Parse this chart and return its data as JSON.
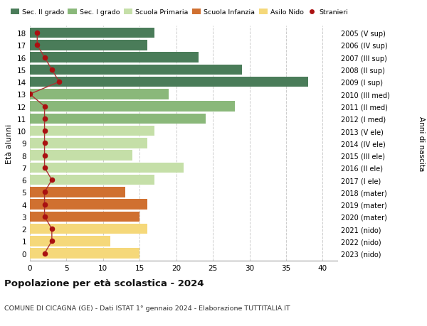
{
  "ages": [
    0,
    1,
    2,
    3,
    4,
    5,
    6,
    7,
    8,
    9,
    10,
    11,
    12,
    13,
    14,
    15,
    16,
    17,
    18
  ],
  "right_labels": [
    "2023 (nido)",
    "2022 (nido)",
    "2021 (nido)",
    "2020 (mater)",
    "2019 (mater)",
    "2018 (mater)",
    "2017 (I ele)",
    "2016 (II ele)",
    "2015 (III ele)",
    "2014 (IV ele)",
    "2013 (V ele)",
    "2012 (I med)",
    "2011 (II med)",
    "2010 (III med)",
    "2009 (I sup)",
    "2008 (II sup)",
    "2007 (III sup)",
    "2006 (IV sup)",
    "2005 (V sup)"
  ],
  "bar_values": [
    15,
    11,
    16,
    15,
    16,
    13,
    17,
    21,
    14,
    16,
    17,
    24,
    28,
    19,
    38,
    29,
    23,
    16,
    17
  ],
  "stranieri": [
    2,
    3,
    3,
    2,
    2,
    2,
    3,
    2,
    2,
    2,
    2,
    2,
    2,
    0,
    4,
    3,
    2,
    1,
    1
  ],
  "categories": {
    "Sec. II grado": {
      "ages": [
        14,
        15,
        16,
        17,
        18
      ],
      "color": "#4a7c59"
    },
    "Sec. I grado": {
      "ages": [
        11,
        12,
        13
      ],
      "color": "#8ab87a"
    },
    "Scuola Primaria": {
      "ages": [
        6,
        7,
        8,
        9,
        10
      ],
      "color": "#c5dfa8"
    },
    "Scuola Infanzia": {
      "ages": [
        3,
        4,
        5
      ],
      "color": "#d07030"
    },
    "Asilo Nido": {
      "ages": [
        0,
        1,
        2
      ],
      "color": "#f5d87a"
    }
  },
  "stranieri_color": "#aa1111",
  "stranieri_line_color": "#aa3333",
  "title": "Popolazione per età scolastica - 2024",
  "subtitle": "COMUNE DI CICAGNA (GE) - Dati ISTAT 1° gennaio 2024 - Elaborazione TUTTITALIA.IT",
  "ylabel_left": "Età alunni",
  "ylabel_right": "Anni di nascita",
  "xlim": [
    0,
    42
  ],
  "background_color": "#ffffff",
  "grid_color": "#cccccc",
  "bar_height": 0.85
}
